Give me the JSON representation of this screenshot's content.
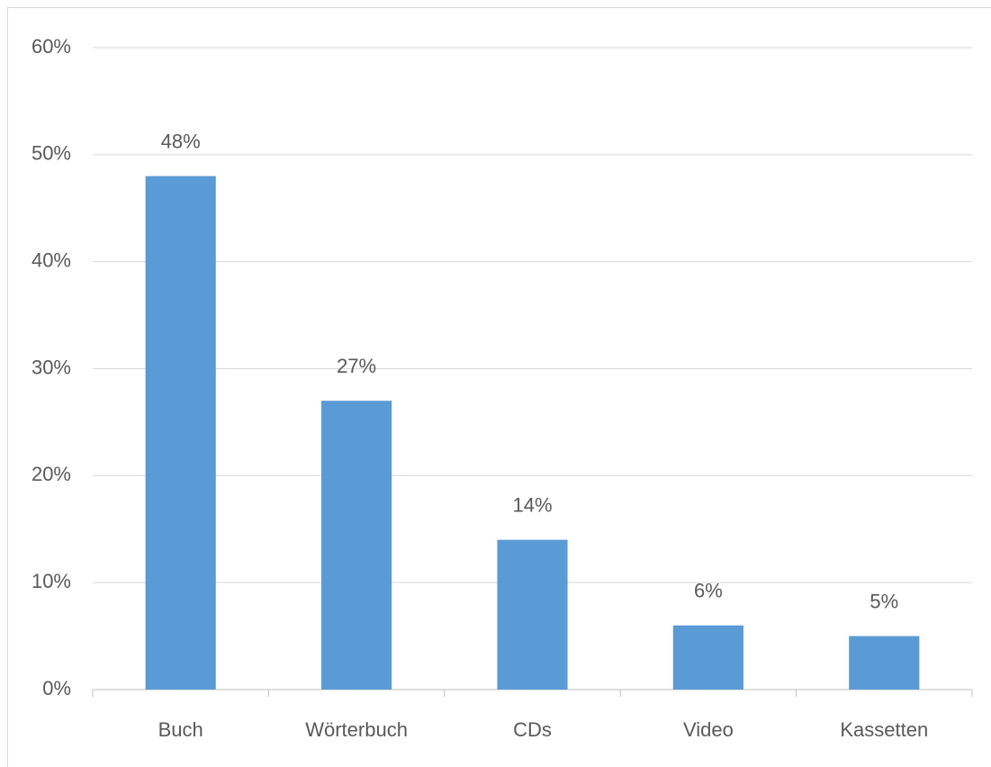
{
  "chart_data": {
    "type": "bar",
    "categories": [
      "Buch",
      "Wörterbuch",
      "CDs",
      "Video",
      "Kassetten"
    ],
    "values": [
      48,
      27,
      14,
      6,
      5
    ],
    "value_labels": [
      "48%",
      "27%",
      "14%",
      "6%",
      "5%"
    ],
    "color": "#5b9bd5",
    "ylim": [
      0,
      60
    ],
    "yticks": [
      {
        "value": 0,
        "label": "0%"
      },
      {
        "value": 10,
        "label": "10%"
      },
      {
        "value": 20,
        "label": "20%"
      },
      {
        "value": 30,
        "label": "30%"
      },
      {
        "value": 40,
        "label": "40%"
      },
      {
        "value": 50,
        "label": "50%"
      },
      {
        "value": 60,
        "label": "60%"
      }
    ],
    "grid": true
  }
}
